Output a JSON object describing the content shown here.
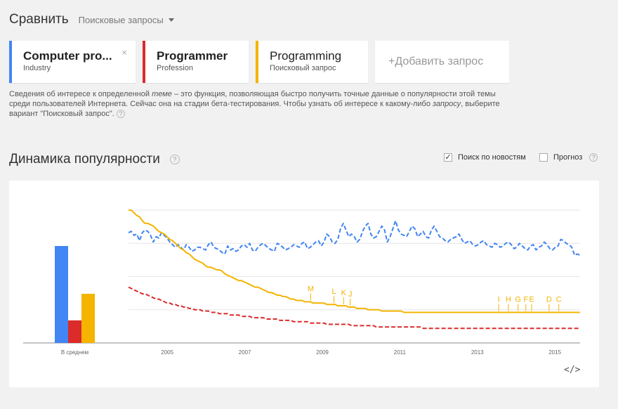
{
  "header": {
    "title": "Сравнить",
    "dropdown_label": "Поисковые запросы"
  },
  "cards": [
    {
      "title": "Computer pro...",
      "subtitle": "Industry",
      "color": "#4285f4",
      "closable": true
    },
    {
      "title": "Programmer",
      "subtitle": "Profession",
      "color": "#db2b2b",
      "closable": false
    },
    {
      "title": "Programming",
      "subtitle": "Поисковый запрос",
      "color": "#f4b400",
      "closable": false
    }
  ],
  "add_query_label": "+Добавить запрос",
  "close_glyph": "×",
  "info": {
    "p1": "Сведения об интересе к определенной ",
    "em1": "теме",
    "p2": " – это функция, позволяющая быстро получить точные данные о популярности этой темы среди пользователей Интернета. Сейчас она на стадии бета-тестирования. Чтобы узнать об интересе к какому-либо ",
    "em2": "запросу",
    "p3": ", выберите вариант \"Поисковый запрос\".",
    "help": "?"
  },
  "section": {
    "title": "Динамика популярности",
    "help": "?"
  },
  "options": {
    "news": {
      "label": "Поиск по новостям",
      "checked": true
    },
    "forecast": {
      "label": "Прогноз",
      "checked": false,
      "help": "?"
    }
  },
  "embed_label": "</>",
  "chart_data": {
    "type": "line",
    "ylim": [
      0,
      100
    ],
    "average_bars": {
      "label": "В среднем",
      "values": [
        73,
        17,
        37
      ],
      "colors": [
        "#4285f4",
        "#db2b2b",
        "#f4b400"
      ]
    },
    "x_ticks": [
      "2005",
      "2007",
      "2009",
      "2011",
      "2013",
      "2015"
    ],
    "x_range": [
      2004.0,
      2015.65
    ],
    "series": [
      {
        "color": "#4285f4",
        "style": "dashed",
        "values": [
          83,
          84,
          81,
          82,
          77,
          83,
          85,
          84,
          81,
          76,
          80,
          79,
          83,
          81,
          79,
          76,
          74,
          72,
          74,
          72,
          70,
          74,
          72,
          69,
          70,
          72,
          72,
          71,
          70,
          74,
          76,
          72,
          71,
          70,
          68,
          67,
          73,
          70,
          71,
          69,
          70,
          73,
          74,
          72,
          75,
          70,
          69,
          72,
          74,
          75,
          73,
          71,
          70,
          69,
          75,
          74,
          72,
          70,
          71,
          72,
          74,
          73,
          72,
          75,
          76,
          71,
          72,
          74,
          76,
          77,
          73,
          76,
          82,
          80,
          76,
          75,
          78,
          86,
          90,
          85,
          80,
          82,
          80,
          76,
          78,
          84,
          88,
          90,
          82,
          79,
          80,
          84,
          88,
          85,
          76,
          80,
          86,
          92,
          85,
          82,
          81,
          80,
          84,
          88,
          86,
          80,
          82,
          84,
          80,
          79,
          85,
          88,
          84,
          80,
          79,
          77,
          76,
          78,
          79,
          80,
          82,
          78,
          75,
          76,
          77,
          74,
          73,
          74,
          76,
          77,
          74,
          73,
          72,
          75,
          74,
          72,
          73,
          75,
          76,
          74,
          71,
          72,
          75,
          73,
          71,
          70,
          73,
          74,
          70,
          72,
          73,
          76,
          74,
          71,
          70,
          72,
          73,
          78,
          77,
          75,
          74,
          72,
          66,
          67,
          66
        ]
      },
      {
        "color": "#db2b2b",
        "style": "dashed",
        "values": [
          42,
          41,
          40,
          39,
          38,
          37,
          37,
          36,
          35,
          34,
          33,
          33,
          32,
          31,
          30,
          30,
          29,
          29,
          28,
          28,
          27,
          27,
          26,
          26,
          25,
          25,
          25,
          24,
          24,
          24,
          23,
          23,
          23,
          22,
          22,
          22,
          22,
          21,
          21,
          21,
          21,
          20,
          20,
          20,
          20,
          19,
          19,
          19,
          19,
          19,
          18,
          18,
          18,
          18,
          18,
          17,
          17,
          17,
          17,
          17,
          16,
          16,
          16,
          16,
          16,
          16,
          15,
          15,
          15,
          15,
          15,
          15,
          14,
          14,
          14,
          14,
          14,
          14,
          14,
          14,
          14,
          13,
          13,
          13,
          13,
          13,
          13,
          13,
          13,
          13,
          12,
          12,
          12,
          12,
          12,
          12,
          12,
          12,
          12,
          12,
          12,
          12,
          12,
          12,
          12,
          12,
          12,
          11,
          11,
          11,
          11,
          11,
          11,
          11,
          11,
          11,
          11,
          11,
          11,
          11,
          11,
          11,
          11,
          11,
          11,
          11,
          11,
          11,
          11,
          11,
          11,
          11,
          11,
          11,
          11,
          11,
          11,
          11,
          11,
          11,
          11,
          11,
          11,
          11,
          11,
          11,
          11,
          11,
          11,
          11,
          11,
          11,
          11,
          11,
          11,
          11,
          11,
          11,
          11,
          11,
          11,
          11,
          11,
          11,
          11
        ]
      },
      {
        "color": "#f4b400",
        "style": "solid",
        "values": [
          100,
          100,
          98,
          96,
          95,
          92,
          90,
          90,
          89,
          88,
          86,
          84,
          83,
          82,
          80,
          78,
          77,
          75,
          73,
          71,
          70,
          68,
          67,
          65,
          63,
          62,
          61,
          60,
          58,
          57,
          57,
          56,
          55,
          55,
          54,
          52,
          51,
          50,
          49,
          48,
          47,
          47,
          46,
          45,
          44,
          43,
          42,
          42,
          41,
          40,
          39,
          38,
          38,
          37,
          36,
          36,
          35,
          35,
          34,
          33,
          33,
          32,
          32,
          32,
          31,
          31,
          31,
          30,
          30,
          30,
          30,
          30,
          29,
          29,
          29,
          29,
          28,
          28,
          28,
          28,
          27,
          27,
          27,
          26,
          26,
          26,
          26,
          25,
          25,
          25,
          25,
          25,
          24,
          24,
          24,
          24,
          24,
          24,
          24,
          24,
          23,
          23,
          23,
          23,
          23,
          23,
          23,
          23,
          23,
          23,
          23,
          23,
          23,
          23,
          23,
          23,
          23,
          23,
          23,
          23,
          23,
          23,
          23,
          23,
          23,
          23,
          23,
          23,
          23,
          23,
          23,
          23,
          23,
          23,
          23,
          23,
          23,
          23,
          23,
          23,
          23,
          23,
          23,
          23,
          23,
          23,
          23,
          23,
          23,
          23,
          23,
          23,
          23,
          23,
          23,
          23,
          23,
          23,
          23,
          23,
          23,
          23,
          23,
          23,
          23
        ]
      }
    ],
    "annotations": [
      {
        "label": "M",
        "x": 2008.7
      },
      {
        "label": "L",
        "x": 2009.3
      },
      {
        "label": "K",
        "x": 2009.55
      },
      {
        "label": "J",
        "x": 2009.72
      },
      {
        "label": "I",
        "x": 2013.55
      },
      {
        "label": "H",
        "x": 2013.8
      },
      {
        "label": "G",
        "x": 2014.05
      },
      {
        "label": "F",
        "x": 2014.25
      },
      {
        "label": "E",
        "x": 2014.4
      },
      {
        "label": "D",
        "x": 2014.85
      },
      {
        "label": "C",
        "x": 2015.1
      }
    ]
  }
}
